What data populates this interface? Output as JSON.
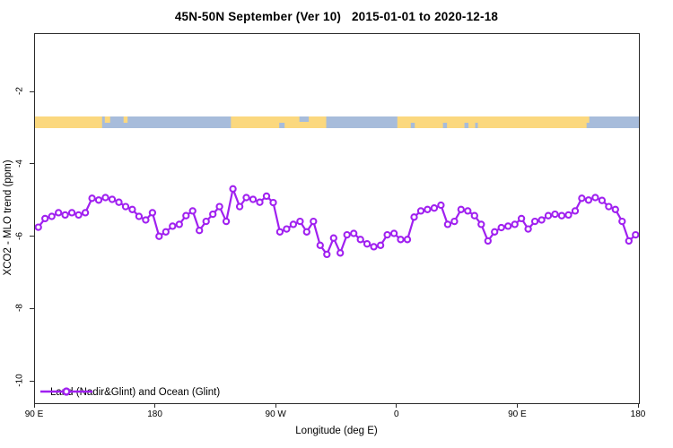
{
  "figure": {
    "title": "45N-50N September (Ver 10)   2015-01-01 to 2020-12-18",
    "x_axis": {
      "label": "Longitude (deg E)",
      "ticks": [
        {
          "lon": 90,
          "label": "90 E"
        },
        {
          "lon": 180,
          "label": "180"
        },
        {
          "lon": 270,
          "label": "90 W"
        },
        {
          "lon": 360,
          "label": "0"
        },
        {
          "lon": 450,
          "label": "90 E"
        },
        {
          "lon": 540,
          "label": "180"
        }
      ]
    },
    "y_axis": {
      "label": "XCO2 - MLO trend (ppm)",
      "ticks": [
        {
          "value": -2,
          "label": "-2"
        },
        {
          "value": -4,
          "label": "-4"
        },
        {
          "value": -6,
          "label": "-6"
        },
        {
          "value": -8,
          "label": "-8"
        },
        {
          "value": -10,
          "label": "-10"
        }
      ]
    },
    "legend": {
      "label": "Land (Nadir&Glint) and Ocean (Glint)"
    }
  },
  "colors": {
    "series": "#A020F0",
    "marker_fill": "#FFFFFF",
    "land": "#FBD87E",
    "ocean": "#A7BCDB",
    "axis": "#2B2B2B",
    "text": "#000000",
    "background": "#FFFFFF"
  },
  "chart_data": {
    "type": "line",
    "title": "45N-50N September (Ver 10)   2015-01-01 to 2020-12-18",
    "xlabel": "Longitude (deg E)",
    "ylabel": "XCO2 - MLO trend (ppm)",
    "xlim": [
      90,
      540
    ],
    "ylim": [
      -10.6,
      -0.4
    ],
    "grid": false,
    "legend_position": "bottom-left-inside",
    "x_axis_note": "longitude axis starts at 90E and wraps eastward around the globe; x values above 180 correspond to (x - 360) deg, i.e. western hemisphere, ending back at 180",
    "series": [
      {
        "name": "Land (Nadir&Glint) and Ocean (Glint)",
        "color": "#A020F0",
        "marker": "open-circle",
        "x": [
          92.5,
          97.5,
          102.5,
          107.5,
          112.5,
          117.5,
          122.5,
          127.5,
          132.5,
          137.5,
          142.5,
          147.5,
          152.5,
          157.5,
          162.5,
          167.5,
          172.5,
          177.5,
          182.5,
          187.5,
          192.5,
          197.5,
          202.5,
          207.5,
          212.5,
          217.5,
          222.5,
          227.5,
          232.5,
          237.5,
          242.5,
          247.5,
          252.5,
          257.5,
          262.5,
          267.5,
          272.5,
          277.5,
          282.5,
          287.5,
          292.5,
          297.5,
          302.5,
          307.5,
          312.5,
          317.5,
          322.5,
          327.5,
          332.5,
          337.5,
          342.5,
          347.5,
          352.5,
          357.5,
          362.5,
          367.5,
          372.5,
          377.5,
          382.5,
          387.5,
          392.5,
          397.5,
          402.5,
          407.5,
          412.5,
          417.5,
          422.5,
          427.5,
          432.5,
          437.5,
          442.5,
          447.5,
          452.5,
          457.5,
          462.5,
          467.5,
          472.5,
          477.5,
          482.5,
          487.5,
          492.5,
          497.5,
          502.5,
          507.5,
          512.5,
          517.5,
          522.5,
          527.5,
          532.5,
          537.5
        ],
        "y": [
          -5.73,
          -5.49,
          -5.43,
          -5.33,
          -5.39,
          -5.33,
          -5.39,
          -5.33,
          -4.93,
          -4.98,
          -4.91,
          -4.96,
          -5.04,
          -5.16,
          -5.24,
          -5.43,
          -5.53,
          -5.33,
          -5.98,
          -5.86,
          -5.7,
          -5.65,
          -5.41,
          -5.28,
          -5.82,
          -5.57,
          -5.37,
          -5.16,
          -5.57,
          -4.67,
          -5.16,
          -4.91,
          -4.96,
          -5.04,
          -4.87,
          -5.05,
          -5.86,
          -5.78,
          -5.65,
          -5.57,
          -5.86,
          -5.57,
          -6.23,
          -6.48,
          -6.03,
          -6.44,
          -5.94,
          -5.9,
          -6.07,
          -6.19,
          -6.27,
          -6.23,
          -5.94,
          -5.9,
          -6.07,
          -6.07,
          -5.45,
          -5.28,
          -5.24,
          -5.2,
          -5.12,
          -5.65,
          -5.57,
          -5.24,
          -5.28,
          -5.41,
          -5.65,
          -6.11,
          -5.86,
          -5.74,
          -5.7,
          -5.65,
          -5.49,
          -5.78,
          -5.57,
          -5.53,
          -5.41,
          -5.37,
          -5.41,
          -5.39,
          -5.28,
          -4.93,
          -4.98,
          -4.91,
          -4.99,
          -5.16,
          -5.24,
          -5.57,
          -6.11,
          -5.94
        ]
      }
    ],
    "surface_band": {
      "description": "horizontal land/ocean strip drawn across the plot near y = -2.8 ppm",
      "y_center_ppm": -2.8,
      "base": "land",
      "ocean_segments_lon": [
        [
          140,
          236
        ],
        [
          307,
          360
        ],
        [
          501,
          540
        ]
      ],
      "ocean_patches": [
        {
          "lon": [
            287,
            294
          ],
          "part": "top"
        },
        {
          "lon": [
            272,
            276
          ],
          "part": "bottom"
        },
        {
          "lon": [
            370,
            373
          ],
          "part": "bottom"
        },
        {
          "lon": [
            394,
            397
          ],
          "part": "bottom"
        },
        {
          "lon": [
            410,
            413
          ],
          "part": "bottom"
        },
        {
          "lon": [
            418,
            420
          ],
          "part": "bottom"
        }
      ],
      "land_patches": [
        {
          "lon": [
            142,
            146
          ],
          "part": "top"
        },
        {
          "lon": [
            156,
            159
          ],
          "part": "top"
        },
        {
          "lon": [
            302,
            305
          ],
          "part": "top"
        },
        {
          "lon": [
            499,
            503
          ],
          "part": "top"
        }
      ]
    }
  }
}
